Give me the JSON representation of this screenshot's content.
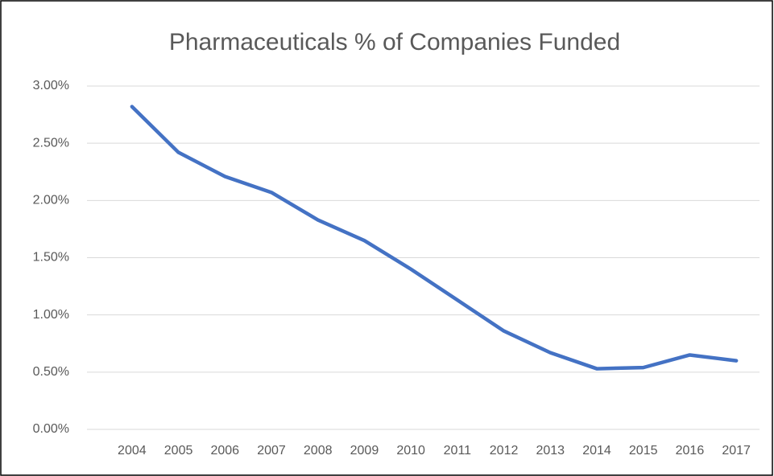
{
  "chart_data": {
    "type": "line",
    "title": "Pharmaceuticals % of Companies Funded",
    "categories": [
      "2004",
      "2005",
      "2006",
      "2007",
      "2008",
      "2009",
      "2010",
      "2011",
      "2012",
      "2013",
      "2014",
      "2015",
      "2016",
      "2017"
    ],
    "values": [
      2.82,
      2.42,
      2.21,
      2.07,
      1.83,
      1.65,
      1.4,
      1.13,
      0.86,
      0.67,
      0.53,
      0.54,
      0.65,
      0.6
    ],
    "color": "#4472c4",
    "ylim": [
      0,
      3
    ],
    "yticks": [
      {
        "value": 0,
        "label": "0.00%"
      },
      {
        "value": 0.5,
        "label": "0.50%"
      },
      {
        "value": 1,
        "label": "1.00%"
      },
      {
        "value": 1.5,
        "label": "1.50%"
      },
      {
        "value": 2,
        "label": "2.00%"
      },
      {
        "value": 2.5,
        "label": "2.50%"
      },
      {
        "value": 3,
        "label": "3.00%"
      }
    ],
    "grid": true
  }
}
